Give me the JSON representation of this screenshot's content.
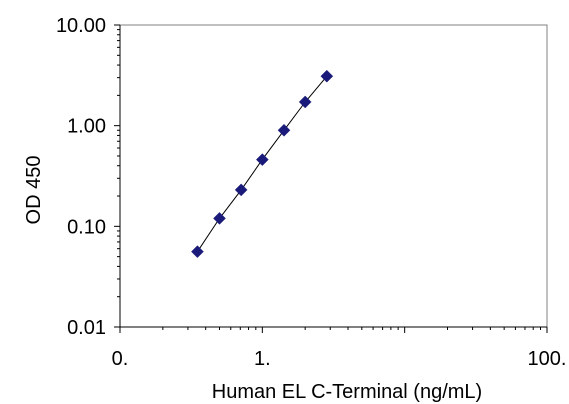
{
  "chart_data": {
    "type": "scatter",
    "x_scale": "log",
    "y_scale": "log",
    "xlabel": "Human EL C-Terminal (ng/mL)",
    "ylabel": "OD 450",
    "xlim": [
      0.1,
      100
    ],
    "ylim": [
      0.01,
      10
    ],
    "x_ticks": [
      {
        "value": 0.1,
        "label": "0."
      },
      {
        "value": 1,
        "label": "1."
      },
      {
        "value": 100,
        "label": "100."
      }
    ],
    "y_ticks": [
      {
        "value": 0.01,
        "label": "0.01"
      },
      {
        "value": 0.1,
        "label": "0.10"
      },
      {
        "value": 1,
        "label": "1.00"
      },
      {
        "value": 10,
        "label": "10.00"
      }
    ],
    "grid": false,
    "legend": "none",
    "series": [
      {
        "x": [
          0.35,
          0.5,
          0.71,
          1.0,
          1.42,
          2.0,
          2.84
        ],
        "y": [
          0.056,
          0.12,
          0.23,
          0.46,
          0.9,
          1.72,
          3.1
        ],
        "marker": "diamond",
        "marker_color": "#1a1a7a",
        "line_color": "#000000"
      }
    ]
  }
}
